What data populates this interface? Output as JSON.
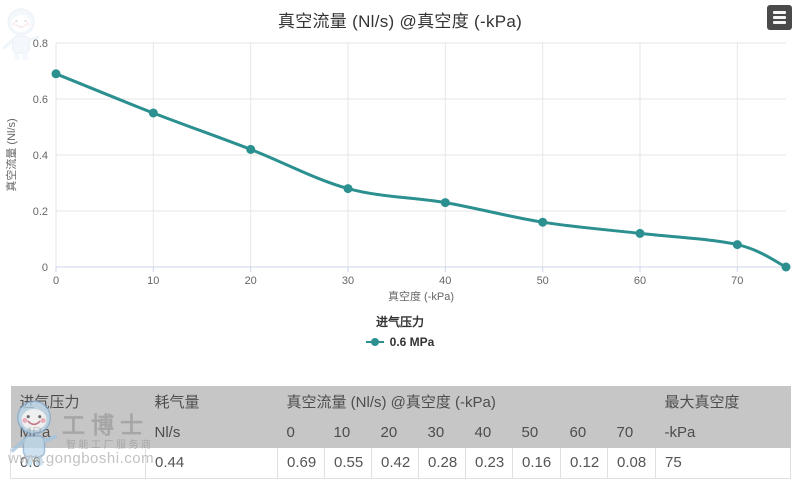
{
  "colors": {
    "accent": "#2b908f",
    "table_header_bg": "#c6c6c6"
  },
  "chart_data": {
    "type": "line",
    "title": "真空流量 (Nl/s) @真空度 (-kPa)",
    "xlabel": "真空度 (-kPa)",
    "ylabel": "真空流量 (Nl/s)",
    "x": [
      0,
      10,
      20,
      30,
      40,
      50,
      60,
      70,
      75
    ],
    "series": [
      {
        "name": "0.6 MPa",
        "values": [
          0.69,
          0.55,
          0.42,
          0.28,
          0.23,
          0.16,
          0.12,
          0.08,
          0
        ]
      }
    ],
    "xlim": [
      0,
      75
    ],
    "ylim": [
      0,
      0.8
    ],
    "x_ticks": [
      0,
      10,
      20,
      30,
      40,
      50,
      60,
      70
    ],
    "y_ticks": [
      0,
      0.2,
      0.4,
      0.6,
      0.8
    ],
    "grid": true,
    "line_color": "#2b908f",
    "legend_title": "进气压力",
    "legend_position": "bottom"
  },
  "legend": {
    "title": "进气压力",
    "items": [
      {
        "label": "0.6 MPa",
        "color": "#2b908f"
      }
    ]
  },
  "export_menu": {
    "icon": "hamburger-icon"
  },
  "table": {
    "header_row1": [
      {
        "label": "进气压力",
        "span": 1
      },
      {
        "label": "耗气量",
        "span": 1
      },
      {
        "label": "真空流量 (Nl/s) @真空度 (-kPa)",
        "span": 8
      },
      {
        "label": "最大真空度",
        "span": 1
      }
    ],
    "header_row2": [
      "MPa",
      "Nl/s",
      "0",
      "10",
      "20",
      "30",
      "40",
      "50",
      "60",
      "70",
      "-kPa"
    ],
    "rows": [
      [
        "0.6",
        "0.44",
        "0.69",
        "0.55",
        "0.42",
        "0.28",
        "0.23",
        "0.16",
        "0.12",
        "0.08",
        "75"
      ]
    ]
  },
  "watermark": {
    "brand": "工博士",
    "tagline": "智能工厂服务商",
    "url": "www.gongboshi.com"
  }
}
